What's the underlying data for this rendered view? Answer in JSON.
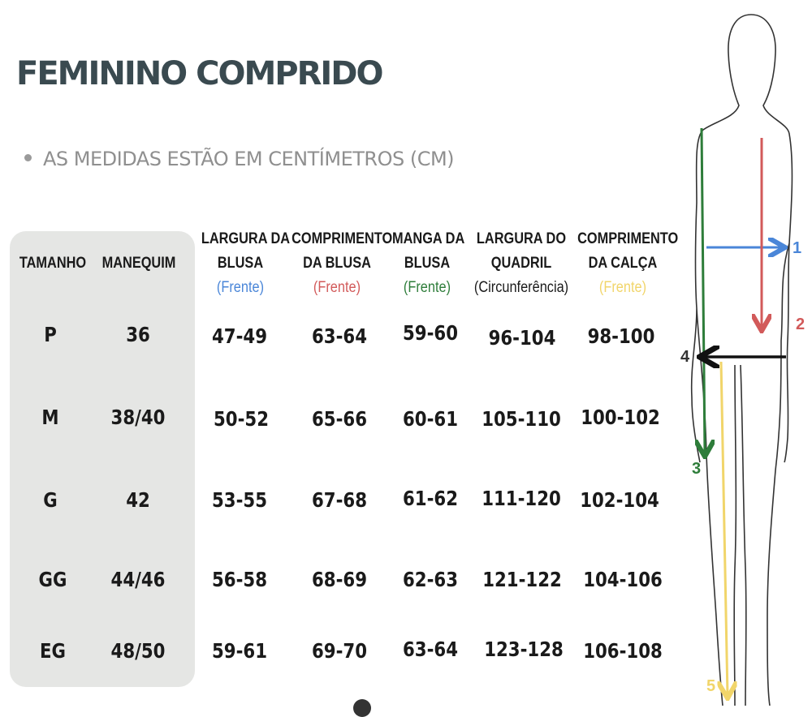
{
  "title": "FEMININO COMPRIDO",
  "note": "AS MEDIDAS ESTÃO EM CENTÍMETROS (CM)",
  "headers": {
    "tamanho": "TAMANHO",
    "manequim": "MANEQUIM",
    "largura_blusa": {
      "line1": "LARGURA DA",
      "line2": "BLUSA",
      "sub": "(Frente)"
    },
    "comprimento_blusa": {
      "line1": "COMPRIMENTO",
      "line2": "DA BLUSA",
      "sub": "(Frente)"
    },
    "manga_blusa": {
      "line1": "MANGA DA",
      "line2": "BLUSA",
      "sub": "(Frente)"
    },
    "largura_quadril": {
      "line1": "LARGURA DO",
      "line2": "QUADRIL",
      "sub": "(Circunferência)"
    },
    "comprimento_calca": {
      "line1": "COMPRIMENTO",
      "line2": "DA CALÇA",
      "sub": "(Frente)"
    }
  },
  "rows": [
    {
      "tamanho": "P",
      "manequim": "36",
      "largura_blusa": "47-49",
      "comprimento_blusa": "63-64",
      "manga_blusa": "59-60",
      "largura_quadril": "96-104",
      "comprimento_calca": "98-100"
    },
    {
      "tamanho": "M",
      "manequim": "38/40",
      "largura_blusa": "50-52",
      "comprimento_blusa": "65-66",
      "manga_blusa": "60-61",
      "largura_quadril": "105-110",
      "comprimento_calca": "100-102"
    },
    {
      "tamanho": "G",
      "manequim": "42",
      "largura_blusa": "53-55",
      "comprimento_blusa": "67-68",
      "manga_blusa": "61-62",
      "largura_quadril": "111-120",
      "comprimento_calca": "102-104"
    },
    {
      "tamanho": "GG",
      "manequim": "44/46",
      "largura_blusa": "56-58",
      "comprimento_blusa": "68-69",
      "manga_blusa": "62-63",
      "largura_quadril": "121-122",
      "comprimento_calca": "104-106"
    },
    {
      "tamanho": "EG",
      "manequim": "48/50",
      "largura_blusa": "59-61",
      "comprimento_blusa": "69-70",
      "manga_blusa": "63-64",
      "largura_quadril": "123-128",
      "comprimento_calca": "106-108"
    }
  ],
  "figure_labels": [
    "1",
    "2",
    "3",
    "4",
    "5"
  ],
  "colors": {
    "title": "#3a4a50",
    "panel": "#e5e6e4",
    "blue": "#4a86d8",
    "red": "#d25a5a",
    "green": "#2e7d3a",
    "yellow": "#f1d56a",
    "black": "#111111"
  }
}
